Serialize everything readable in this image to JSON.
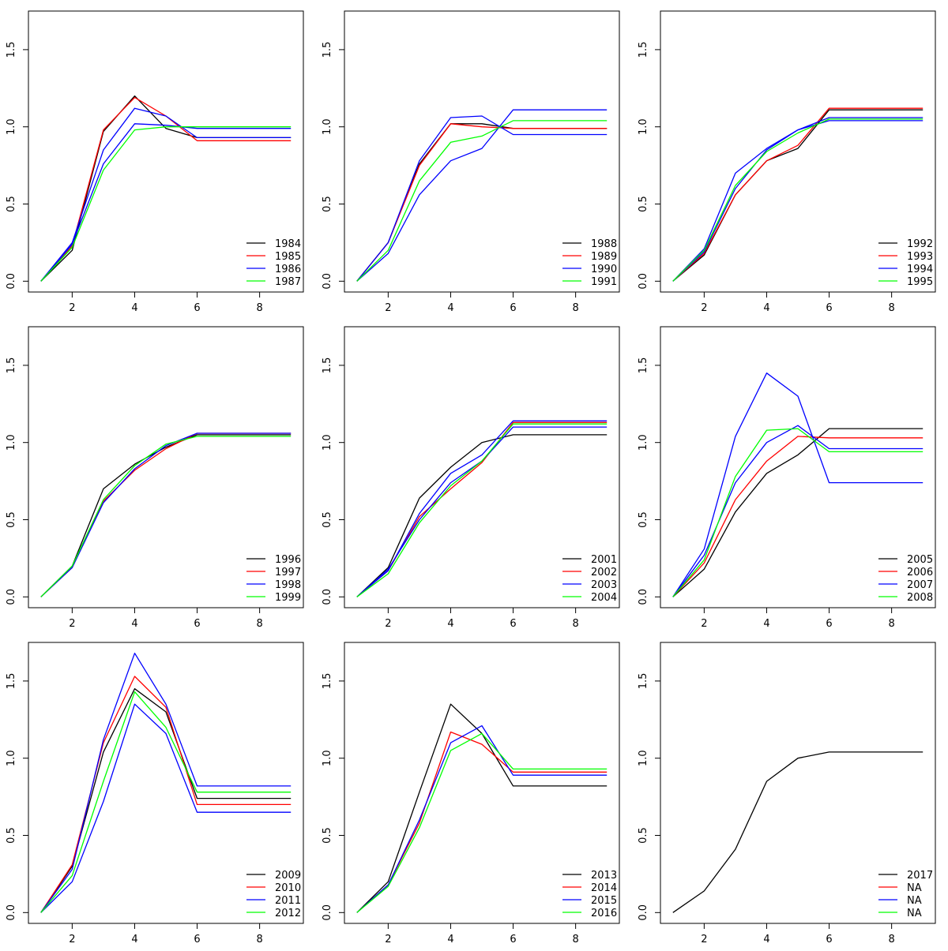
{
  "chart_data": [
    {
      "type": "line",
      "x": [
        1,
        2,
        3,
        4,
        5,
        6,
        7,
        8,
        9
      ],
      "xlim": [
        0.6,
        9.4
      ],
      "ylim": [
        -0.07,
        1.75
      ],
      "xticks": [
        2,
        4,
        6,
        8
      ],
      "yticks": [
        0.0,
        0.5,
        1.0,
        1.5
      ],
      "series": [
        {
          "name": "1984",
          "color": "#000000",
          "values": [
            0,
            0.2,
            0.97,
            1.2,
            0.99,
            0.93,
            0.93,
            0.93,
            0.93
          ]
        },
        {
          "name": "1985",
          "color": "#FF0000",
          "values": [
            0,
            0.23,
            0.98,
            1.19,
            1.07,
            0.91,
            0.91,
            0.91,
            0.91
          ]
        },
        {
          "name": "1986",
          "color": "#0000FF",
          "values": [
            0,
            0.24,
            0.76,
            1.02,
            1.01,
            0.99,
            0.99,
            0.99,
            0.99
          ]
        },
        {
          "name": "1986",
          "color": "#0000FF",
          "values": [
            0,
            0.25,
            0.85,
            1.12,
            1.07,
            0.93,
            0.93,
            0.93,
            0.93
          ]
        },
        {
          "name": "1987",
          "color": "#00FF00",
          "values": [
            0,
            0.22,
            0.72,
            0.98,
            1.0,
            1.0,
            1.0,
            1.0,
            1.0
          ]
        }
      ],
      "legend": {
        "position": "bottom-right",
        "labels": [
          "1984",
          "1985",
          "1986",
          "1987"
        ],
        "colors": [
          "#000000",
          "#FF0000",
          "#0000FF",
          "#00FF00"
        ]
      }
    },
    {
      "type": "line",
      "x": [
        1,
        2,
        3,
        4,
        5,
        6,
        7,
        8,
        9
      ],
      "xlim": [
        0.6,
        9.4
      ],
      "ylim": [
        -0.07,
        1.75
      ],
      "xticks": [
        2,
        4,
        6,
        8
      ],
      "yticks": [
        0.0,
        0.5,
        1.0,
        1.5
      ],
      "series": [
        {
          "name": "1988",
          "color": "#000000",
          "values": [
            0,
            0.25,
            0.76,
            1.02,
            1.02,
            0.99,
            0.99,
            0.99,
            0.99
          ]
        },
        {
          "name": "1989",
          "color": "#FF0000",
          "values": [
            0,
            0.25,
            0.75,
            1.02,
            1.0,
            0.99,
            0.99,
            0.99,
            0.99
          ]
        },
        {
          "name": "1990",
          "color": "#0000FF",
          "values": [
            0,
            0.25,
            0.78,
            1.06,
            1.07,
            0.95,
            0.95,
            0.95,
            0.95
          ]
        },
        {
          "name": "1990",
          "color": "#0000FF",
          "values": [
            0,
            0.18,
            0.56,
            0.78,
            0.86,
            1.11,
            1.11,
            1.11,
            1.11
          ]
        },
        {
          "name": "1991",
          "color": "#00FF00",
          "values": [
            0,
            0.2,
            0.65,
            0.9,
            0.94,
            1.04,
            1.04,
            1.04,
            1.04
          ]
        }
      ],
      "legend": {
        "position": "bottom-right",
        "labels": [
          "1988",
          "1989",
          "1990",
          "1991"
        ],
        "colors": [
          "#000000",
          "#FF0000",
          "#0000FF",
          "#00FF00"
        ]
      }
    },
    {
      "type": "line",
      "x": [
        1,
        2,
        3,
        4,
        5,
        6,
        7,
        8,
        9
      ],
      "xlim": [
        0.6,
        9.4
      ],
      "ylim": [
        -0.07,
        1.75
      ],
      "xticks": [
        2,
        4,
        6,
        8
      ],
      "yticks": [
        0.0,
        0.5,
        1.0,
        1.5
      ],
      "series": [
        {
          "name": "1992",
          "color": "#000000",
          "values": [
            0,
            0.17,
            0.56,
            0.78,
            0.86,
            1.11,
            1.11,
            1.11,
            1.11
          ]
        },
        {
          "name": "1993",
          "color": "#FF0000",
          "values": [
            0,
            0.18,
            0.56,
            0.78,
            0.88,
            1.12,
            1.12,
            1.12,
            1.12
          ]
        },
        {
          "name": "1994",
          "color": "#0000FF",
          "values": [
            0,
            0.21,
            0.7,
            0.86,
            0.98,
            1.04,
            1.04,
            1.04,
            1.04
          ]
        },
        {
          "name": "1994",
          "color": "#0000FF",
          "values": [
            0,
            0.19,
            0.6,
            0.85,
            0.98,
            1.06,
            1.06,
            1.06,
            1.06
          ]
        },
        {
          "name": "1995",
          "color": "#00FF00",
          "values": [
            0,
            0.2,
            0.62,
            0.84,
            0.96,
            1.05,
            1.05,
            1.05,
            1.05
          ]
        }
      ],
      "legend": {
        "position": "bottom-right",
        "labels": [
          "1992",
          "1993",
          "1994",
          "1995"
        ],
        "colors": [
          "#000000",
          "#FF0000",
          "#0000FF",
          "#00FF00"
        ]
      }
    },
    {
      "type": "line",
      "x": [
        1,
        2,
        3,
        4,
        5,
        6,
        7,
        8,
        9
      ],
      "xlim": [
        0.6,
        9.4
      ],
      "ylim": [
        -0.07,
        1.75
      ],
      "xticks": [
        2,
        4,
        6,
        8
      ],
      "yticks": [
        0.0,
        0.5,
        1.0,
        1.5
      ],
      "series": [
        {
          "name": "1996",
          "color": "#000000",
          "values": [
            0,
            0.2,
            0.7,
            0.86,
            0.97,
            1.05,
            1.05,
            1.05,
            1.05
          ]
        },
        {
          "name": "1997",
          "color": "#FF0000",
          "values": [
            0,
            0.19,
            0.62,
            0.82,
            0.96,
            1.06,
            1.06,
            1.06,
            1.06
          ]
        },
        {
          "name": "1998",
          "color": "#0000FF",
          "values": [
            0,
            0.19,
            0.61,
            0.83,
            0.98,
            1.06,
            1.06,
            1.06,
            1.06
          ]
        },
        {
          "name": "1999",
          "color": "#00FF00",
          "values": [
            0,
            0.2,
            0.63,
            0.85,
            0.99,
            1.04,
            1.04,
            1.04,
            1.04
          ]
        }
      ],
      "legend": {
        "position": "bottom-right",
        "labels": [
          "1996",
          "1997",
          "1998",
          "1999"
        ],
        "colors": [
          "#000000",
          "#FF0000",
          "#0000FF",
          "#00FF00"
        ]
      }
    },
    {
      "type": "line",
      "x": [
        1,
        2,
        3,
        4,
        5,
        6,
        7,
        8,
        9
      ],
      "xlim": [
        0.6,
        9.4
      ],
      "ylim": [
        -0.07,
        1.75
      ],
      "xticks": [
        2,
        4,
        6,
        8
      ],
      "yticks": [
        0.0,
        0.5,
        1.0,
        1.5
      ],
      "series": [
        {
          "name": "2001",
          "color": "#000000",
          "values": [
            0,
            0.19,
            0.64,
            0.84,
            1.0,
            1.05,
            1.05,
            1.05,
            1.05
          ]
        },
        {
          "name": "2002",
          "color": "#FF0000",
          "values": [
            0,
            0.17,
            0.52,
            0.7,
            0.87,
            1.13,
            1.13,
            1.13,
            1.13
          ]
        },
        {
          "name": "2003",
          "color": "#0000FF",
          "values": [
            0,
            0.17,
            0.54,
            0.8,
            0.92,
            1.14,
            1.14,
            1.14,
            1.14
          ]
        },
        {
          "name": "2003",
          "color": "#0000FF",
          "values": [
            0,
            0.18,
            0.5,
            0.74,
            0.88,
            1.1,
            1.1,
            1.1,
            1.1
          ]
        },
        {
          "name": "2004",
          "color": "#00FF00",
          "values": [
            0,
            0.15,
            0.48,
            0.72,
            0.88,
            1.12,
            1.12,
            1.12,
            1.12
          ]
        }
      ],
      "legend": {
        "position": "bottom-right",
        "labels": [
          "2001",
          "2002",
          "2003",
          "2004"
        ],
        "colors": [
          "#000000",
          "#FF0000",
          "#0000FF",
          "#00FF00"
        ]
      }
    },
    {
      "type": "line",
      "x": [
        1,
        2,
        3,
        4,
        5,
        6,
        7,
        8,
        9
      ],
      "xlim": [
        0.6,
        9.4
      ],
      "ylim": [
        -0.07,
        1.75
      ],
      "xticks": [
        2,
        4,
        6,
        8
      ],
      "yticks": [
        0.0,
        0.5,
        1.0,
        1.5
      ],
      "series": [
        {
          "name": "2005",
          "color": "#000000",
          "values": [
            0,
            0.18,
            0.55,
            0.8,
            0.92,
            1.09,
            1.09,
            1.09,
            1.09
          ]
        },
        {
          "name": "2006",
          "color": "#FF0000",
          "values": [
            0,
            0.22,
            0.63,
            0.88,
            1.04,
            1.03,
            1.03,
            1.03,
            1.03
          ]
        },
        {
          "name": "2007",
          "color": "#0000FF",
          "values": [
            0,
            0.31,
            1.04,
            1.45,
            1.3,
            0.74,
            0.74,
            0.74,
            0.74
          ]
        },
        {
          "name": "2007",
          "color": "#0000FF",
          "values": [
            0,
            0.27,
            0.74,
            1.0,
            1.11,
            0.96,
            0.96,
            0.96,
            0.96
          ]
        },
        {
          "name": "2008",
          "color": "#00FF00",
          "values": [
            0,
            0.24,
            0.78,
            1.08,
            1.09,
            0.94,
            0.94,
            0.94,
            0.94
          ]
        }
      ],
      "legend": {
        "position": "bottom-right",
        "labels": [
          "2005",
          "2006",
          "2007",
          "2008"
        ],
        "colors": [
          "#000000",
          "#FF0000",
          "#0000FF",
          "#00FF00"
        ]
      }
    },
    {
      "type": "line",
      "x": [
        1,
        2,
        3,
        4,
        5,
        6,
        7,
        8,
        9
      ],
      "xlim": [
        0.6,
        9.4
      ],
      "ylim": [
        -0.07,
        1.75
      ],
      "xticks": [
        2,
        4,
        6,
        8
      ],
      "yticks": [
        0.0,
        0.5,
        1.0,
        1.5
      ],
      "series": [
        {
          "name": "2009",
          "color": "#000000",
          "values": [
            0,
            0.3,
            1.04,
            1.45,
            1.3,
            0.74,
            0.74,
            0.74,
            0.74
          ]
        },
        {
          "name": "2010",
          "color": "#FF0000",
          "values": [
            0,
            0.31,
            1.1,
            1.53,
            1.33,
            0.7,
            0.7,
            0.7,
            0.7
          ]
        },
        {
          "name": "2011",
          "color": "#0000FF",
          "values": [
            0,
            0.28,
            1.12,
            1.68,
            1.35,
            0.82,
            0.82,
            0.82,
            0.82
          ]
        },
        {
          "name": "2011",
          "color": "#0000FF",
          "values": [
            0,
            0.2,
            0.72,
            1.35,
            1.16,
            0.65,
            0.65,
            0.65,
            0.65
          ]
        },
        {
          "name": "2012",
          "color": "#00FF00",
          "values": [
            0,
            0.24,
            0.85,
            1.43,
            1.2,
            0.78,
            0.78,
            0.78,
            0.78
          ]
        }
      ],
      "legend": {
        "position": "bottom-right",
        "labels": [
          "2009",
          "2010",
          "2011",
          "2012"
        ],
        "colors": [
          "#000000",
          "#FF0000",
          "#0000FF",
          "#00FF00"
        ]
      }
    },
    {
      "type": "line",
      "x": [
        1,
        2,
        3,
        4,
        5,
        6,
        7,
        8,
        9
      ],
      "xlim": [
        0.6,
        9.4
      ],
      "ylim": [
        -0.07,
        1.75
      ],
      "xticks": [
        2,
        4,
        6,
        8
      ],
      "yticks": [
        0.0,
        0.5,
        1.0,
        1.5
      ],
      "series": [
        {
          "name": "2013",
          "color": "#000000",
          "values": [
            0,
            0.2,
            0.78,
            1.35,
            1.16,
            0.82,
            0.82,
            0.82,
            0.82
          ]
        },
        {
          "name": "2014",
          "color": "#FF0000",
          "values": [
            0,
            0.18,
            0.58,
            1.17,
            1.09,
            0.91,
            0.91,
            0.91,
            0.91
          ]
        },
        {
          "name": "2015",
          "color": "#0000FF",
          "values": [
            0,
            0.18,
            0.6,
            1.1,
            1.21,
            0.89,
            0.89,
            0.89,
            0.89
          ]
        },
        {
          "name": "2016",
          "color": "#00FF00",
          "values": [
            0,
            0.17,
            0.55,
            1.05,
            1.16,
            0.93,
            0.93,
            0.93,
            0.93
          ]
        }
      ],
      "legend": {
        "position": "bottom-right",
        "labels": [
          "2013",
          "2014",
          "2015",
          "2016"
        ],
        "colors": [
          "#000000",
          "#FF0000",
          "#0000FF",
          "#00FF00"
        ]
      }
    },
    {
      "type": "line",
      "x": [
        1,
        2,
        3,
        4,
        5,
        6,
        7,
        8,
        9
      ],
      "xlim": [
        0.6,
        9.4
      ],
      "ylim": [
        -0.07,
        1.75
      ],
      "xticks": [
        2,
        4,
        6,
        8
      ],
      "yticks": [
        0.0,
        0.5,
        1.0,
        1.5
      ],
      "series": [
        {
          "name": "2017",
          "color": "#000000",
          "values": [
            0,
            0.14,
            0.41,
            0.85,
            1.0,
            1.04,
            1.04,
            1.04,
            1.04
          ]
        }
      ],
      "legend": {
        "position": "bottom-right",
        "labels": [
          "2017",
          "NA",
          "NA",
          "NA"
        ],
        "colors": [
          "#000000",
          "#FF0000",
          "#0000FF",
          "#00FF00"
        ]
      }
    }
  ]
}
